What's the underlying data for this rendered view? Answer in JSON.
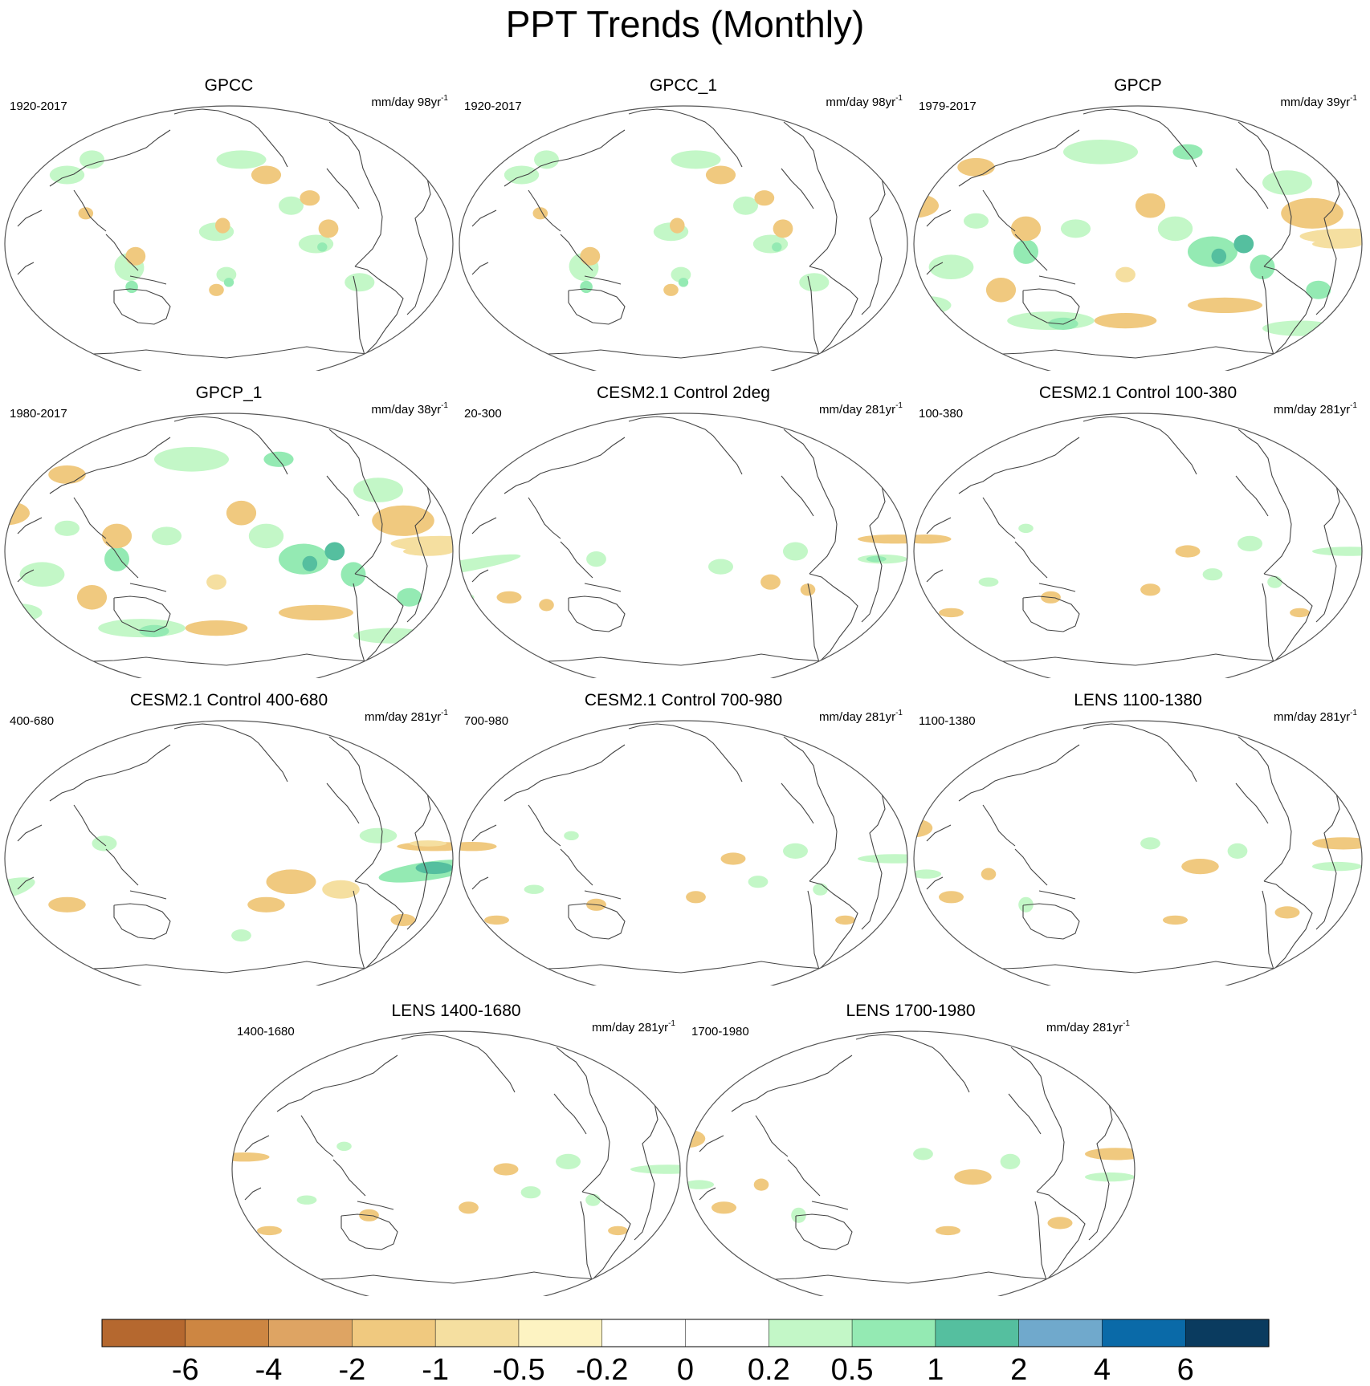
{
  "chart_data": {
    "type": "heatmap",
    "title": "PPT Trends (Monthly)",
    "colorbar": {
      "tick_labels": [
        "-6",
        "-4",
        "-2",
        "-1",
        "-0.5",
        "-0.2",
        "0",
        "0.2",
        "0.5",
        "1",
        "2",
        "4",
        "6"
      ],
      "levels": [
        -6,
        -4,
        -2,
        -1,
        -0.5,
        -0.2,
        0,
        0.2,
        0.5,
        1,
        2,
        4,
        6
      ],
      "colors": [
        "#b5682f",
        "#cd8642",
        "#dea463",
        "#f0c97f",
        "#f5dfa0",
        "#fdf3c2",
        "#ffffff",
        "#ffffff",
        "#c3f7c7",
        "#94eab3",
        "#55bf9f",
        "#70a9cc",
        "#0a6aa8",
        "#0a3b5f"
      ]
    },
    "panels": [
      {
        "title": "GPCC",
        "period": "1920-2017",
        "units_base": "mm/day 98yr",
        "units_exp": "-1",
        "signal": "obs_land"
      },
      {
        "title": "GPCC_1",
        "period": "1920-2017",
        "units_base": "mm/day 98yr",
        "units_exp": "-1",
        "signal": "obs_land"
      },
      {
        "title": "GPCP",
        "period": "1979-2017",
        "units_base": "mm/day 39yr",
        "units_exp": "-1",
        "signal": "obs_strong"
      },
      {
        "title": "GPCP_1",
        "period": "1980-2017",
        "units_base": "mm/day 38yr",
        "units_exp": "-1",
        "signal": "obs_strong"
      },
      {
        "title": "CESM2.1 Control 2deg",
        "period": "20-300",
        "units_base": "mm/day 281yr",
        "units_exp": "-1",
        "signal": "model_pos"
      },
      {
        "title": "CESM2.1 Control 100-380",
        "period": "100-380",
        "units_base": "mm/day 281yr",
        "units_exp": "-1",
        "signal": "model_weak"
      },
      {
        "title": "CESM2.1 Control 400-680",
        "period": "400-680",
        "units_base": "mm/day 281yr",
        "units_exp": "-1",
        "signal": "model_strong"
      },
      {
        "title": "CESM2.1 Control 700-980",
        "period": "700-980",
        "units_base": "mm/day 281yr",
        "units_exp": "-1",
        "signal": "model_weak"
      },
      {
        "title": "LENS 1100-1380",
        "period": "1100-1380",
        "units_base": "mm/day 281yr",
        "units_exp": "-1",
        "signal": "model_neg"
      },
      {
        "title": "LENS 1400-1680",
        "period": "1400-1680",
        "units_base": "mm/day 281yr",
        "units_exp": "-1",
        "signal": "model_weak"
      },
      {
        "title": "LENS 1700-1980",
        "period": "1700-1980",
        "units_base": "mm/day 281yr",
        "units_exp": "-1",
        "signal": "model_neg"
      }
    ]
  }
}
